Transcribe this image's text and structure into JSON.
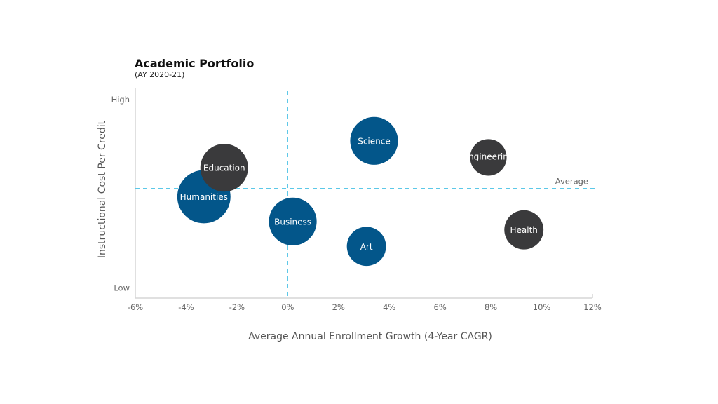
{
  "chart_data": {
    "type": "scatter",
    "subtype": "bubble",
    "title": "Academic Portfolio",
    "subtitle": "(AY 2020-21)",
    "xlabel": "Average Annual Enrollment Growth (4-Year CAGR)",
    "ylabel": "Instructional Cost Per Credit",
    "xlim": [
      -6,
      12
    ],
    "x_ticks": [
      -6,
      -4,
      -2,
      0,
      2,
      4,
      6,
      8,
      10,
      12
    ],
    "x_tick_labels": [
      "-6%",
      "-4%",
      "-2%",
      "0%",
      "2%",
      "4%",
      "6%",
      "8%",
      "10%",
      "12%"
    ],
    "ylim": [
      0,
      10
    ],
    "y_tick_labels": [
      {
        "label": "High",
        "y": 9.6
      },
      {
        "label": "Low",
        "y": 0.5
      }
    ],
    "grid": false,
    "reference_lines": [
      {
        "orientation": "vertical",
        "x": 0,
        "label": ""
      },
      {
        "orientation": "horizontal",
        "y": 5.3,
        "label": "Average"
      }
    ],
    "colors": {
      "blue": "#03568a",
      "dark": "#3a3a3c",
      "reference": "#5bc8e8",
      "axis": "#d6d6d6"
    },
    "points": [
      {
        "label": "Science",
        "x": 3.4,
        "y": 7.6,
        "size": 11.6,
        "color": "blue"
      },
      {
        "label": "Engineering",
        "x": 7.9,
        "y": 6.8,
        "size": 6.8,
        "color": "dark"
      },
      {
        "label": "Humanities",
        "x": -3.3,
        "y": 4.9,
        "size": 14.4,
        "color": "blue"
      },
      {
        "label": "Education",
        "x": -2.5,
        "y": 6.3,
        "size": 11.6,
        "color": "dark"
      },
      {
        "label": "Business",
        "x": 0.2,
        "y": 3.7,
        "size": 11.6,
        "color": "blue"
      },
      {
        "label": "Art",
        "x": 3.1,
        "y": 2.5,
        "size": 7.8,
        "color": "blue"
      },
      {
        "label": "Health",
        "x": 9.3,
        "y": 3.3,
        "size": 7.8,
        "color": "dark"
      }
    ]
  }
}
